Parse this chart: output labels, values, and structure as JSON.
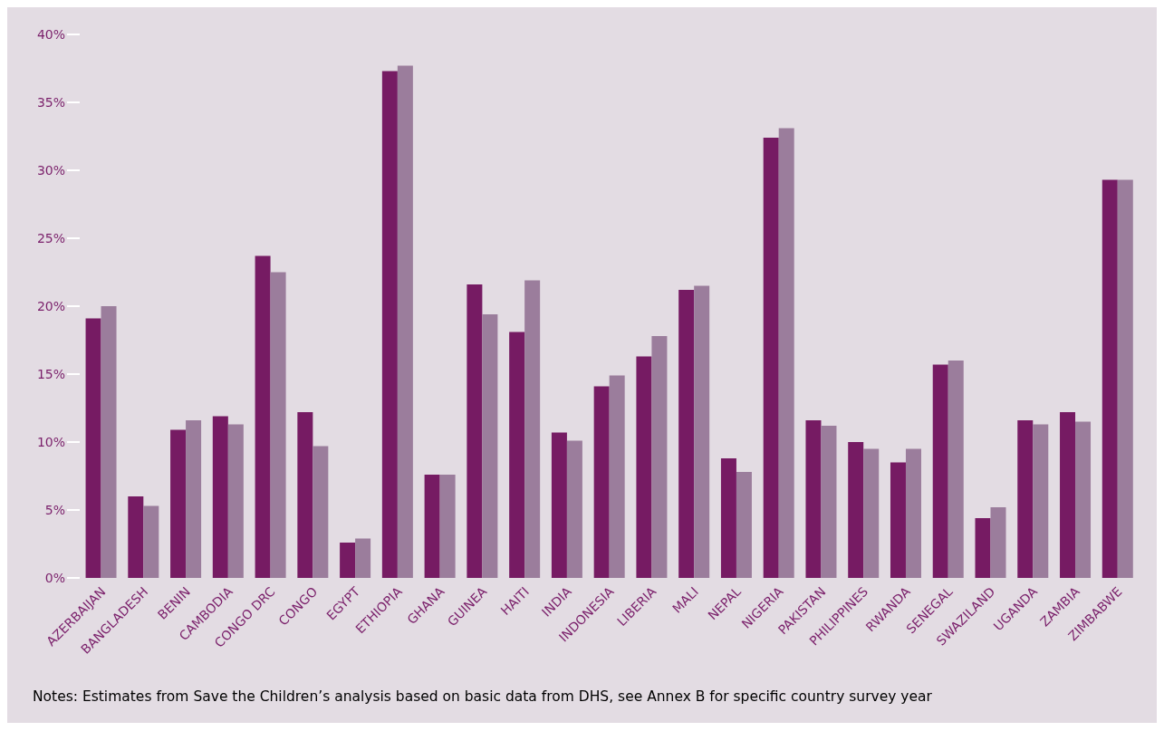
{
  "chart_data": {
    "type": "bar",
    "categories": [
      "AZERBAIJAN",
      "BANGLADESH",
      "BENIN",
      "CAMBODIA",
      "CONGO DRC",
      "CONGO",
      "EGYPT",
      "ETHIOPIA",
      "GHANA",
      "GUINEA",
      "HAITI",
      "INDIA",
      "INDONESIA",
      "LIBERIA",
      "MALI",
      "NEPAL",
      "NIGERIA",
      "PAKISTAN",
      "PHILIPPINES",
      "RWANDA",
      "SENEGAL",
      "SWAZILAND",
      "UGANDA",
      "ZAMBIA",
      "ZIMBABWE"
    ],
    "series": [
      {
        "color": "#761b63",
        "values": [
          19.1,
          6.0,
          10.9,
          11.9,
          23.7,
          12.2,
          2.6,
          37.3,
          7.6,
          21.6,
          18.1,
          10.7,
          14.1,
          16.3,
          21.2,
          8.8,
          32.4,
          11.6,
          10.0,
          8.5,
          15.7,
          4.4,
          11.6,
          12.2,
          29.3
        ]
      },
      {
        "color": "#9b7d9c",
        "values": [
          20.0,
          5.3,
          11.6,
          11.3,
          22.5,
          9.7,
          2.9,
          37.7,
          7.6,
          19.4,
          21.9,
          10.1,
          14.9,
          17.8,
          21.5,
          7.8,
          33.1,
          11.2,
          9.5,
          9.5,
          16.0,
          5.2,
          11.3,
          11.5,
          29.3
        ]
      }
    ],
    "ylim": [
      0,
      40
    ],
    "yticks": [
      {
        "value": 0,
        "label": "0%"
      },
      {
        "value": 5,
        "label": "5%"
      },
      {
        "value": 10,
        "label": "10%"
      },
      {
        "value": 15,
        "label": "15%"
      },
      {
        "value": 20,
        "label": "20%"
      },
      {
        "value": 25,
        "label": "25%"
      },
      {
        "value": 30,
        "label": "30%"
      },
      {
        "value": 35,
        "label": "35%"
      },
      {
        "value": 40,
        "label": "40%"
      }
    ],
    "annotations": [
      "Notes: Estimates from Save the Children’s analysis based on basic data from DHS, see Annex B for specific country survey year"
    ]
  }
}
